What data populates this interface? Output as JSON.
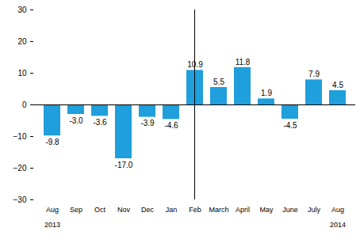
{
  "chart_data": {
    "type": "bar",
    "categories": [
      "Aug\n\n2013",
      "Sep",
      "Oct",
      "Nov",
      "Dec",
      "Jan",
      "Feb",
      "March",
      "April",
      "May",
      "June",
      "July",
      "Aug\n\n2014"
    ],
    "values": [
      -9.8,
      -3.0,
      -3.6,
      -17.0,
      -3.9,
      -4.6,
      10.9,
      5.5,
      11.8,
      1.9,
      -4.5,
      7.9,
      4.5
    ],
    "value_labels": [
      "-9.8",
      "-3.0",
      "-3.6",
      "-17.0",
      "-3.9",
      "-4.6",
      "10.9",
      "5.5",
      "11.8",
      "1.9",
      "-4.5",
      "7.9",
      "4.5"
    ],
    "color": "#1f9fdc",
    "ylim": [
      -30,
      30
    ],
    "yticks": [
      -30,
      -20,
      -10,
      0,
      10,
      20,
      30
    ],
    "grid": false,
    "data_labels": true
  }
}
